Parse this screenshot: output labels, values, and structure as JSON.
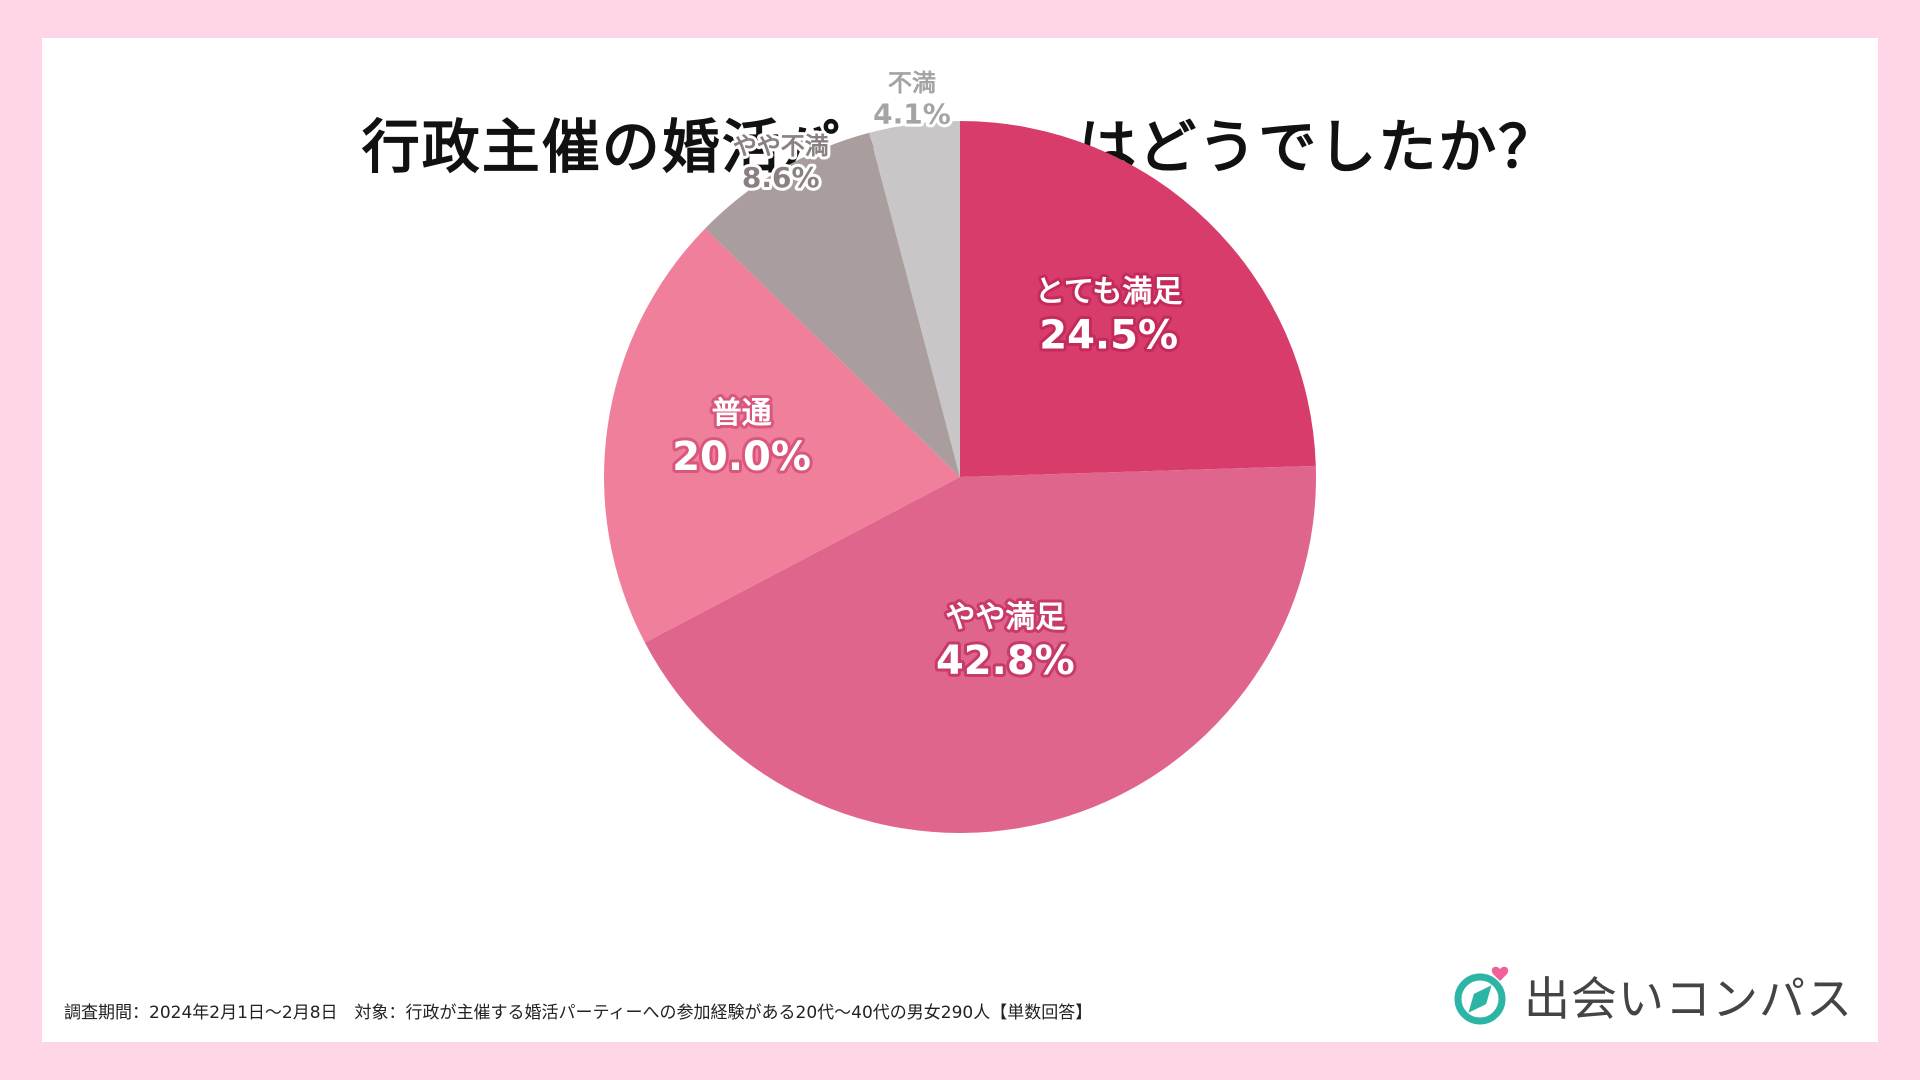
{
  "title": "行政主催の婚活パーティーはどうでしたか？",
  "chart_data": {
    "type": "pie",
    "start": "12 o'clock, clockwise",
    "slices": [
      {
        "label": "とても満足",
        "value": 24.5,
        "display": "24.5%",
        "color": "#d73c6b"
      },
      {
        "label": "やや満足",
        "value": 42.8,
        "display": "42.8%",
        "color": "#e0658c"
      },
      {
        "label": "普通",
        "value": 20.0,
        "display": "20.0%",
        "color": "#ef7f9b"
      },
      {
        "label": "やや不満",
        "value": 8.6,
        "display": "8.6%",
        "color": "#a99d9d"
      },
      {
        "label": "不満",
        "value": 4.1,
        "display": "4.1%",
        "color": "#c8c6c6"
      }
    ]
  },
  "footnote": "調査期間：2024年2月1日〜2月8日　対象：行政が主催する婚活パーティーへの参加経験がある20代〜40代の男女290人【単数回答】",
  "brand": {
    "name": "出会いコンパス",
    "logo_icon": "compass-heart-icon",
    "accent_color": "#2cb5a5",
    "heart_color": "#f0609a"
  }
}
